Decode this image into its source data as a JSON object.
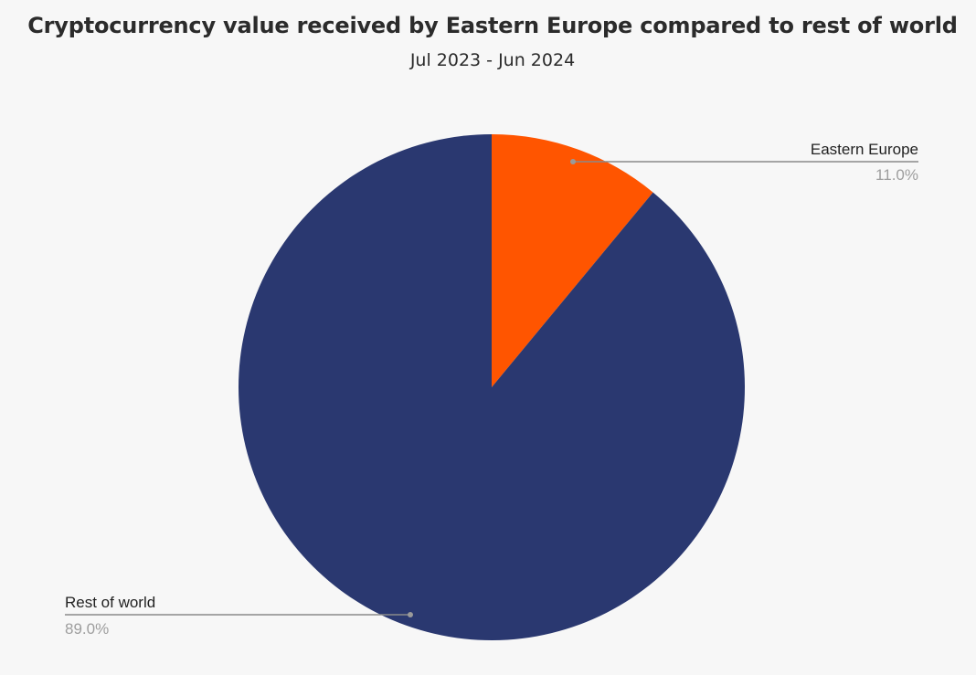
{
  "chart_data": {
    "type": "pie",
    "title": "Cryptocurrency value received by Eastern Europe compared to rest of world",
    "subtitle": "Jul 2023 - Jun 2024",
    "slices": [
      {
        "label": "Eastern Europe",
        "value": 11.0,
        "value_label": "11.0%",
        "color": "#ff5500"
      },
      {
        "label": "Rest of world",
        "value": 89.0,
        "value_label": "89.0%",
        "color": "#2a3870"
      }
    ],
    "start_angle": "12 o'clock",
    "direction": "clockwise",
    "label_style": "callout lines outside pie",
    "background": "#f7f7f7"
  }
}
